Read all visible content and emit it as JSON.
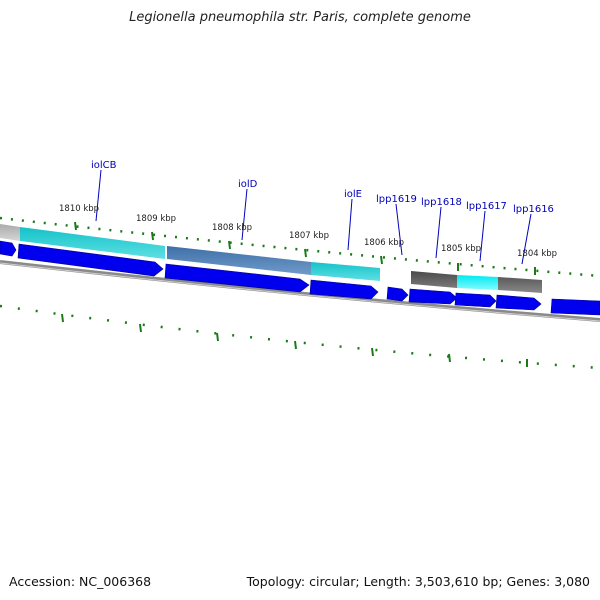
{
  "title": "Legionella pneumophila str. Paris, complete genome",
  "footer": {
    "accession": "Accession: NC_006368",
    "summary": "Topology: circular; Length: 3,503,610 bp; Genes: 3,080"
  },
  "scale_labels": [
    "1810 kbp",
    "1809 kbp",
    "1808 kbp",
    "1807 kbp",
    "1806 kbp",
    "1805 kbp",
    "1804 kbp"
  ],
  "gene_labels": [
    "iolCB",
    "iolD",
    "iolE",
    "lpp1619",
    "lpp1618",
    "lpp1617",
    "lpp1616"
  ],
  "colors": {
    "cds": "#0000ee",
    "tick": "#1a7a1a",
    "label": "#0000bb",
    "backbone": "#8a8a8a"
  }
}
